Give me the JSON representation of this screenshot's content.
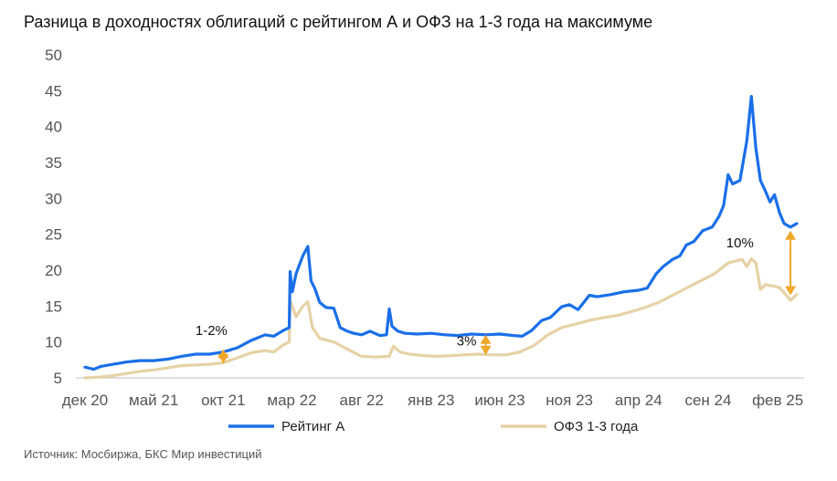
{
  "title": "Разница в доходностях облигаций с рейтингом А и ОФЗ на 1-3 года на максимуме",
  "source": "Источник: Мосбиржа, БКС Мир инвестиций",
  "colors": {
    "rating_a": "#1a6fe8",
    "ofz": "#e6d2a6",
    "arrow": "#f0a82a",
    "axis": "#bfbfbf"
  },
  "chart_data": {
    "type": "line",
    "title": "Разница в доходностях облигаций с рейтингом А и ОФЗ на 1-3 года на максимуме",
    "xlabel": "",
    "ylabel": "",
    "ylim": [
      5,
      50
    ],
    "yticks": [
      5,
      10,
      15,
      20,
      25,
      30,
      35,
      40,
      45,
      50
    ],
    "xlim": [
      "2020-12-01",
      "2025-03-31"
    ],
    "xticks": [
      {
        "date": "2020-12-01",
        "label": "дек 20"
      },
      {
        "date": "2021-05-01",
        "label": "май 21"
      },
      {
        "date": "2021-10-01",
        "label": "окт 21"
      },
      {
        "date": "2022-03-01",
        "label": "мар 22"
      },
      {
        "date": "2022-08-01",
        "label": "авг 22"
      },
      {
        "date": "2023-01-01",
        "label": "янв 23"
      },
      {
        "date": "2023-06-01",
        "label": "июн 23"
      },
      {
        "date": "2023-11-01",
        "label": "ноя 23"
      },
      {
        "date": "2024-04-01",
        "label": "апр 24"
      },
      {
        "date": "2024-09-01",
        "label": "сен 24"
      },
      {
        "date": "2025-02-01",
        "label": "фев 25"
      }
    ],
    "grid": false,
    "legend": "bottom",
    "series": [
      {
        "name": "Рейтинг А",
        "points": [
          [
            "2020-12-01",
            6.5
          ],
          [
            "2020-12-20",
            6.2
          ],
          [
            "2021-01-05",
            6.6
          ],
          [
            "2021-02-01",
            6.9
          ],
          [
            "2021-03-01",
            7.2
          ],
          [
            "2021-04-01",
            7.4
          ],
          [
            "2021-05-01",
            7.4
          ],
          [
            "2021-06-01",
            7.6
          ],
          [
            "2021-07-01",
            8.0
          ],
          [
            "2021-08-01",
            8.3
          ],
          [
            "2021-09-01",
            8.3
          ],
          [
            "2021-10-01",
            8.6
          ],
          [
            "2021-11-01",
            9.2
          ],
          [
            "2021-12-01",
            10.2
          ],
          [
            "2022-01-01",
            11.0
          ],
          [
            "2022-01-20",
            10.8
          ],
          [
            "2022-02-10",
            11.6
          ],
          [
            "2022-02-23",
            12.0
          ],
          [
            "2022-02-25",
            19.8
          ],
          [
            "2022-03-02",
            17.0
          ],
          [
            "2022-03-10",
            19.5
          ],
          [
            "2022-03-25",
            22.0
          ],
          [
            "2022-04-05",
            23.3
          ],
          [
            "2022-04-12",
            18.5
          ],
          [
            "2022-04-20",
            17.5
          ],
          [
            "2022-05-01",
            15.5
          ],
          [
            "2022-05-15",
            14.8
          ],
          [
            "2022-06-01",
            14.7
          ],
          [
            "2022-06-15",
            12.0
          ],
          [
            "2022-07-01",
            11.5
          ],
          [
            "2022-07-15",
            11.2
          ],
          [
            "2022-08-01",
            11.0
          ],
          [
            "2022-08-20",
            11.5
          ],
          [
            "2022-09-10",
            10.9
          ],
          [
            "2022-09-25",
            11.0
          ],
          [
            "2022-10-01",
            14.6
          ],
          [
            "2022-10-07",
            12.2
          ],
          [
            "2022-10-20",
            11.5
          ],
          [
            "2022-11-05",
            11.2
          ],
          [
            "2022-12-01",
            11.1
          ],
          [
            "2023-01-01",
            11.2
          ],
          [
            "2023-02-01",
            11.0
          ],
          [
            "2023-03-01",
            10.9
          ],
          [
            "2023-04-01",
            11.1
          ],
          [
            "2023-05-01",
            11.0
          ],
          [
            "2023-06-01",
            11.1
          ],
          [
            "2023-07-01",
            10.9
          ],
          [
            "2023-07-20",
            10.8
          ],
          [
            "2023-08-10",
            11.6
          ],
          [
            "2023-09-01",
            13.0
          ],
          [
            "2023-09-20",
            13.4
          ],
          [
            "2023-10-15",
            14.9
          ],
          [
            "2023-11-01",
            15.2
          ],
          [
            "2023-11-20",
            14.5
          ],
          [
            "2023-12-15",
            16.5
          ],
          [
            "2024-01-01",
            16.3
          ],
          [
            "2024-02-01",
            16.6
          ],
          [
            "2024-03-01",
            17.0
          ],
          [
            "2024-04-01",
            17.2
          ],
          [
            "2024-04-20",
            17.5
          ],
          [
            "2024-05-10",
            19.5
          ],
          [
            "2024-05-25",
            20.5
          ],
          [
            "2024-06-15",
            21.5
          ],
          [
            "2024-07-01",
            22.0
          ],
          [
            "2024-07-15",
            23.5
          ],
          [
            "2024-08-01",
            24.0
          ],
          [
            "2024-08-20",
            25.5
          ],
          [
            "2024-09-10",
            26.0
          ],
          [
            "2024-09-25",
            27.5
          ],
          [
            "2024-10-05",
            29.0
          ],
          [
            "2024-10-15",
            33.3
          ],
          [
            "2024-10-25",
            32.0
          ],
          [
            "2024-11-10",
            32.5
          ],
          [
            "2024-11-25",
            38.0
          ],
          [
            "2024-12-05",
            44.2
          ],
          [
            "2024-12-15",
            37.0
          ],
          [
            "2024-12-25",
            32.5
          ],
          [
            "2025-01-05",
            31.0
          ],
          [
            "2025-01-15",
            29.5
          ],
          [
            "2025-01-25",
            30.5
          ],
          [
            "2025-02-05",
            28.0
          ],
          [
            "2025-02-15",
            26.5
          ],
          [
            "2025-03-01",
            26.0
          ],
          [
            "2025-03-15",
            26.5
          ]
        ]
      },
      {
        "name": "ОФЗ 1-3 года",
        "points": [
          [
            "2020-12-01",
            5.0
          ],
          [
            "2021-01-01",
            5.1
          ],
          [
            "2021-02-01",
            5.3
          ],
          [
            "2021-03-01",
            5.6
          ],
          [
            "2021-04-01",
            5.9
          ],
          [
            "2021-05-01",
            6.1
          ],
          [
            "2021-06-01",
            6.4
          ],
          [
            "2021-07-01",
            6.7
          ],
          [
            "2021-08-01",
            6.8
          ],
          [
            "2021-09-01",
            6.9
          ],
          [
            "2021-10-01",
            7.1
          ],
          [
            "2021-11-01",
            7.8
          ],
          [
            "2021-12-01",
            8.5
          ],
          [
            "2022-01-01",
            8.8
          ],
          [
            "2022-01-20",
            8.6
          ],
          [
            "2022-02-10",
            9.6
          ],
          [
            "2022-02-23",
            10.0
          ],
          [
            "2022-02-25",
            15.8
          ],
          [
            "2022-03-10",
            13.5
          ],
          [
            "2022-03-25",
            15.0
          ],
          [
            "2022-04-05",
            15.6
          ],
          [
            "2022-04-15",
            12.0
          ],
          [
            "2022-05-01",
            10.5
          ],
          [
            "2022-06-01",
            10.0
          ],
          [
            "2022-07-01",
            9.0
          ],
          [
            "2022-08-01",
            8.0
          ],
          [
            "2022-09-01",
            7.9
          ],
          [
            "2022-10-01",
            8.0
          ],
          [
            "2022-10-10",
            9.4
          ],
          [
            "2022-10-25",
            8.6
          ],
          [
            "2022-11-15",
            8.3
          ],
          [
            "2022-12-15",
            8.1
          ],
          [
            "2023-01-15",
            8.0
          ],
          [
            "2023-02-15",
            8.1
          ],
          [
            "2023-03-15",
            8.2
          ],
          [
            "2023-04-15",
            8.3
          ],
          [
            "2023-05-15",
            8.2
          ],
          [
            "2023-06-15",
            8.2
          ],
          [
            "2023-07-15",
            8.6
          ],
          [
            "2023-08-15",
            9.5
          ],
          [
            "2023-09-15",
            11.0
          ],
          [
            "2023-10-15",
            12.0
          ],
          [
            "2023-11-15",
            12.5
          ],
          [
            "2023-12-15",
            13.0
          ],
          [
            "2024-01-15",
            13.4
          ],
          [
            "2024-02-15",
            13.7
          ],
          [
            "2024-03-15",
            14.2
          ],
          [
            "2024-04-15",
            14.8
          ],
          [
            "2024-05-15",
            15.5
          ],
          [
            "2024-06-15",
            16.5
          ],
          [
            "2024-07-15",
            17.5
          ],
          [
            "2024-08-15",
            18.5
          ],
          [
            "2024-09-15",
            19.5
          ],
          [
            "2024-10-15",
            21.0
          ],
          [
            "2024-11-15",
            21.5
          ],
          [
            "2024-11-25",
            20.5
          ],
          [
            "2024-12-05",
            21.6
          ],
          [
            "2024-12-15",
            21.0
          ],
          [
            "2024-12-25",
            17.3
          ],
          [
            "2025-01-05",
            18.0
          ],
          [
            "2025-01-20",
            17.8
          ],
          [
            "2025-02-05",
            17.6
          ],
          [
            "2025-02-20",
            16.5
          ],
          [
            "2025-03-01",
            15.8
          ],
          [
            "2025-03-15",
            16.6
          ]
        ]
      }
    ],
    "annotations": [
      {
        "text": "1-2%",
        "date": "2021-10-01",
        "from": 7.0,
        "to": 9.0,
        "text_date": "2021-09-05",
        "text_y": 11.0
      },
      {
        "text": "3%",
        "date": "2023-05-01",
        "from": 8.2,
        "to": 11.0,
        "text_date": "2023-03-20",
        "text_y": 9.5
      },
      {
        "text": "10%",
        "date": "2025-03-01",
        "from": 16.5,
        "to": 25.5,
        "text_date": "2024-11-10",
        "text_y": 23.2
      }
    ]
  }
}
